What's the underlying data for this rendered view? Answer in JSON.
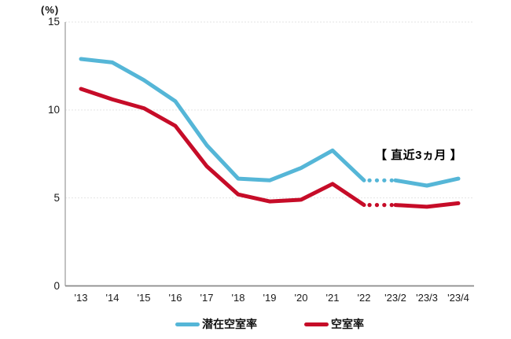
{
  "chart_data": {
    "type": "line",
    "title": "",
    "unit_label": "(%)",
    "ylabel": "(%)",
    "xlabel": "",
    "ylim": [
      0,
      15
    ],
    "yticks": [
      0,
      5,
      10,
      15
    ],
    "grid": "horizontal-dotted",
    "legend_position": "bottom",
    "x": [
      "'13",
      "'14",
      "'15",
      "'16",
      "'17",
      "'18",
      "'19",
      "'20",
      "'21",
      "'22",
      "'23/2",
      "'23/3",
      "'23/4"
    ],
    "series": [
      {
        "id": "latent-vacancy-rate",
        "name": "潜在空室率",
        "color": "#55b6d7",
        "values": [
          12.9,
          12.7,
          11.7,
          10.5,
          8.0,
          6.1,
          6.0,
          6.7,
          7.7,
          6.0,
          6.0,
          5.7,
          6.1
        ]
      },
      {
        "id": "vacancy-rate",
        "name": "空室率",
        "color": "#c60c28",
        "values": [
          11.2,
          10.6,
          10.1,
          9.1,
          6.8,
          5.2,
          4.8,
          4.9,
          5.8,
          4.6,
          4.6,
          4.5,
          4.7
        ]
      }
    ],
    "dotted_segment": {
      "from_index": 9,
      "to_index": 10
    },
    "annotation": "【 直近3ヵ月 】"
  },
  "colors": {
    "axis": "#8a8a8a",
    "grid": "#e3e3e3",
    "text": "#1a1a1a"
  }
}
